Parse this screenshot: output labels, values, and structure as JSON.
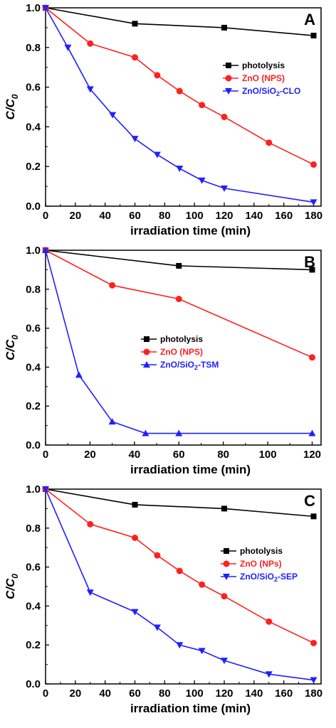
{
  "chart_data": [
    {
      "panel": "A",
      "type": "line",
      "xlabel": "irradiation time (min)",
      "ylabel": "C/C",
      "ylabel_sub": "0",
      "xlim": [
        0,
        185
      ],
      "ylim": [
        0,
        1.0
      ],
      "xticks": [
        0,
        20,
        40,
        60,
        80,
        100,
        120,
        140,
        160,
        180
      ],
      "yticks": [
        0.0,
        0.2,
        0.4,
        0.6,
        0.8,
        1.0
      ],
      "legend_position": "right-middle",
      "series": [
        {
          "name": "photolysis",
          "color": "#000000",
          "marker": "square",
          "x": [
            0,
            60,
            120,
            180
          ],
          "y": [
            1.0,
            0.92,
            0.9,
            0.86
          ]
        },
        {
          "name": "ZnO (NPS)",
          "color": "#ff2020",
          "marker": "circle",
          "x": [
            0,
            30,
            60,
            75,
            90,
            105,
            120,
            150,
            180
          ],
          "y": [
            1.0,
            0.82,
            0.75,
            0.66,
            0.58,
            0.51,
            0.45,
            0.32,
            0.21
          ]
        },
        {
          "name": "ZnO/SiO",
          "name_sub": "2",
          "name_suffix": "-CLO",
          "color": "#2020ff",
          "marker": "triangle-down",
          "x": [
            0,
            15,
            30,
            45,
            60,
            75,
            90,
            105,
            120,
            180
          ],
          "y": [
            1.0,
            0.8,
            0.59,
            0.46,
            0.34,
            0.26,
            0.19,
            0.13,
            0.09,
            0.02
          ]
        }
      ]
    },
    {
      "panel": "B",
      "type": "line",
      "xlabel": "irradiation time (min)",
      "ylabel": "C/C",
      "ylabel_sub": "0",
      "xlim": [
        0,
        124
      ],
      "ylim": [
        0,
        1.0
      ],
      "xticks": [
        0,
        20,
        40,
        60,
        80,
        100,
        120
      ],
      "yticks": [
        0.0,
        0.2,
        0.4,
        0.6,
        0.8,
        1.0
      ],
      "legend_position": "center",
      "series": [
        {
          "name": "photolysis",
          "color": "#000000",
          "marker": "square",
          "x": [
            0,
            60,
            120
          ],
          "y": [
            1.0,
            0.92,
            0.9
          ]
        },
        {
          "name": "ZnO (NPS)",
          "color": "#ff2020",
          "marker": "circle",
          "x": [
            0,
            30,
            60,
            120
          ],
          "y": [
            1.0,
            0.82,
            0.75,
            0.45
          ]
        },
        {
          "name": "ZnO/SiO",
          "name_sub": "2",
          "name_suffix": "-TSM",
          "color": "#2020ff",
          "marker": "triangle-up",
          "x": [
            0,
            15,
            30,
            45,
            60,
            120
          ],
          "y": [
            1.0,
            0.36,
            0.12,
            0.06,
            0.06,
            0.06
          ]
        }
      ]
    },
    {
      "panel": "C",
      "type": "line",
      "xlabel": "irradiation time (min)",
      "ylabel": "C/C",
      "ylabel_sub": "0",
      "xlim": [
        0,
        185
      ],
      "ylim": [
        0,
        1.0
      ],
      "xticks": [
        0,
        20,
        40,
        60,
        80,
        100,
        120,
        140,
        160,
        180
      ],
      "yticks": [
        0.0,
        0.2,
        0.4,
        0.6,
        0.8,
        1.0
      ],
      "legend_position": "right-middle",
      "series": [
        {
          "name": "photolysis",
          "color": "#000000",
          "marker": "square",
          "x": [
            0,
            60,
            120,
            180
          ],
          "y": [
            1.0,
            0.92,
            0.9,
            0.86
          ]
        },
        {
          "name": "ZnO (NPs)",
          "color": "#ff2020",
          "marker": "circle",
          "x": [
            0,
            30,
            60,
            75,
            90,
            105,
            120,
            150,
            180
          ],
          "y": [
            1.0,
            0.82,
            0.75,
            0.66,
            0.58,
            0.51,
            0.45,
            0.32,
            0.21
          ]
        },
        {
          "name": "ZnO/SiO",
          "name_sub": "2",
          "name_suffix": "-SEP",
          "color": "#2020ff",
          "marker": "triangle-down",
          "x": [
            0,
            30,
            60,
            75,
            90,
            105,
            120,
            150,
            180
          ],
          "y": [
            1.0,
            0.47,
            0.37,
            0.29,
            0.2,
            0.17,
            0.12,
            0.05,
            0.02
          ]
        }
      ]
    }
  ]
}
